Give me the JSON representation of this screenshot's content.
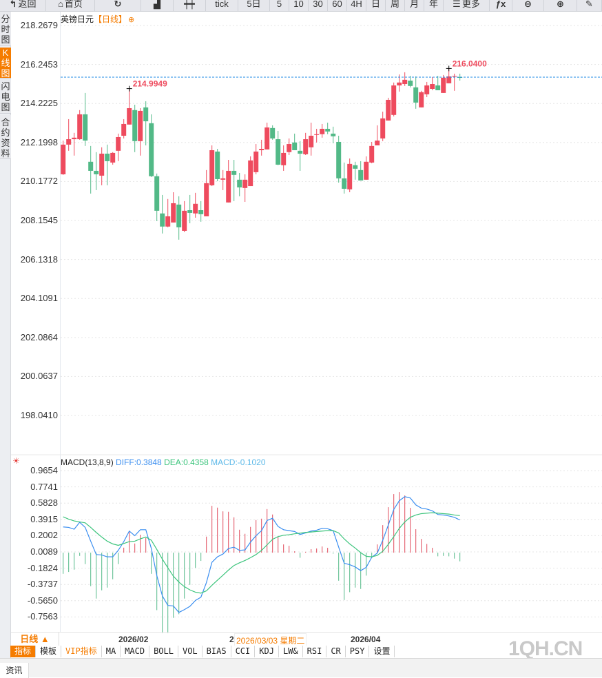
{
  "toolbar": {
    "buttons": [
      {
        "label": "返回",
        "icon": "back-arrow-icon"
      },
      {
        "label": "首页",
        "icon": "home-icon"
      },
      {
        "label": "",
        "icon": "refresh-icon"
      },
      {
        "label": "",
        "icon": "bar-chart-icon"
      },
      {
        "label": "",
        "icon": "candlestick-icon"
      },
      {
        "label": "tick"
      },
      {
        "label": "5日"
      },
      {
        "label": "5"
      },
      {
        "label": "10"
      },
      {
        "label": "30"
      },
      {
        "label": "60"
      },
      {
        "label": "4H"
      },
      {
        "label": "日"
      },
      {
        "label": "周"
      },
      {
        "label": "月"
      },
      {
        "label": "年"
      },
      {
        "label": "更多",
        "icon": "menu-icon"
      },
      {
        "label": "",
        "icon": "fx-icon"
      },
      {
        "label": "",
        "icon": "zoom-out-icon"
      },
      {
        "label": "",
        "icon": "zoom-in-icon"
      },
      {
        "label": "",
        "icon": "pen-icon"
      }
    ]
  },
  "sidebar": {
    "tabs": [
      {
        "label": "分时图"
      },
      {
        "label": "K线图",
        "active": true
      },
      {
        "label": "闪电图"
      },
      {
        "label": "合约资料"
      }
    ]
  },
  "chart": {
    "symbol": "英镑日元",
    "period": "【日线】",
    "last_price_line": 215.588
  },
  "chart_data": [
    {
      "type": "candlestick",
      "title": "英镑日元【日线】",
      "yticks": [
        "218.2679",
        "216.2453",
        "214.2225",
        "212.1998",
        "210.1772",
        "208.1545",
        "206.1318",
        "204.1091",
        "202.0864",
        "200.0637",
        "198.0410"
      ],
      "ylim": [
        196.6,
        218.9
      ],
      "annotations": [
        {
          "label": "214.9949",
          "candle": 13
        },
        {
          "label": "216.0400",
          "candle": 71
        }
      ],
      "colors": {
        "up": "#ee4b5e",
        "down": "#52b987",
        "last_line": "#1e88e5"
      },
      "ohlc": [
        [
          210.55,
          212.3,
          210.52,
          212.09
        ],
        [
          212.09,
          213.41,
          211.77,
          212.37
        ],
        [
          212.37,
          212.7,
          211.52,
          212.45
        ],
        [
          212.37,
          213.88,
          212.34,
          213.66
        ],
        [
          213.66,
          214.77,
          212.02,
          212.3
        ],
        [
          211.2,
          212.02,
          209.55,
          210.73
        ],
        [
          210.73,
          211.7,
          209.73,
          210.55
        ],
        [
          210.48,
          211.95,
          209.98,
          211.62
        ],
        [
          211.62,
          212.09,
          209.98,
          211.23
        ],
        [
          211.16,
          211.7,
          211.05,
          211.66
        ],
        [
          211.77,
          212.66,
          211.23,
          212.48
        ],
        [
          212.55,
          213.41,
          212.41,
          213.16
        ],
        [
          213.13,
          214.9949,
          213.13,
          213.98
        ],
        [
          213.88,
          214.16,
          211.7,
          212.27
        ],
        [
          212.27,
          213.98,
          211.52,
          213.84
        ],
        [
          214.02,
          214.34,
          212.05,
          213.3
        ],
        [
          213.2,
          213.66,
          210.41,
          210.45
        ],
        [
          210.45,
          210.59,
          208.12,
          208.66
        ],
        [
          208.52,
          209.48,
          207.48,
          207.84
        ],
        [
          207.84,
          209.27,
          207.8,
          208.37
        ],
        [
          208.05,
          209.62,
          208.05,
          209.05
        ],
        [
          208.98,
          209.41,
          207.16,
          207.8
        ],
        [
          207.62,
          209.16,
          207.55,
          208.66
        ],
        [
          208.69,
          209.48,
          208.01,
          208.55
        ],
        [
          208.52,
          209.59,
          208.3,
          209.02
        ],
        [
          208.69,
          209.16,
          208.09,
          208.48
        ],
        [
          208.37,
          210.77,
          208.37,
          210.09
        ],
        [
          209.98,
          212.05,
          209.94,
          211.8
        ],
        [
          211.73,
          211.87,
          210.19,
          210.3
        ],
        [
          210.27,
          210.77,
          209.73,
          210.34
        ],
        [
          209.09,
          211.3,
          209.09,
          210.73
        ],
        [
          210.73,
          211.3,
          209.16,
          210.52
        ],
        [
          210.27,
          210.62,
          209.41,
          209.87
        ],
        [
          209.84,
          210.55,
          209.12,
          210.27
        ],
        [
          209.94,
          211.48,
          209.94,
          211.27
        ],
        [
          210.66,
          212.12,
          210.55,
          211.73
        ],
        [
          211.8,
          212.34,
          211.52,
          211.87
        ],
        [
          211.84,
          213.23,
          211.84,
          212.98
        ],
        [
          212.95,
          213.09,
          212.34,
          212.41
        ],
        [
          212.37,
          212.8,
          211.02,
          211.05
        ],
        [
          211.02,
          212.05,
          210.73,
          211.66
        ],
        [
          211.7,
          212.41,
          211.55,
          212.12
        ],
        [
          212.2,
          212.66,
          211.8,
          211.8
        ],
        [
          211.77,
          212.27,
          210.73,
          211.62
        ],
        [
          211.59,
          212.7,
          211.55,
          212.37
        ],
        [
          211.95,
          213.23,
          211.52,
          212.55
        ],
        [
          212.59,
          212.91,
          212.2,
          212.63
        ],
        [
          212.63,
          213.16,
          212.45,
          212.91
        ],
        [
          212.91,
          213.23,
          212.63,
          212.77
        ],
        [
          212.66,
          213.02,
          212.16,
          212.52
        ],
        [
          212.23,
          212.55,
          210.12,
          210.34
        ],
        [
          210.34,
          211.16,
          209.55,
          209.8
        ],
        [
          209.77,
          211.37,
          209.62,
          211.09
        ],
        [
          211.02,
          211.2,
          210.27,
          210.84
        ],
        [
          210.77,
          211.23,
          210.23,
          210.23
        ],
        [
          210.27,
          211.48,
          210.27,
          211.2
        ],
        [
          211.16,
          212.23,
          211.12,
          212.02
        ],
        [
          212.05,
          213.09,
          212.05,
          212.3
        ],
        [
          212.41,
          213.8,
          212.27,
          213.45
        ],
        [
          213.34,
          214.52,
          213.34,
          214.41
        ],
        [
          213.63,
          215.31,
          213.55,
          215.16
        ],
        [
          215.16,
          215.73,
          214.84,
          215.31
        ],
        [
          215.23,
          215.84,
          215.13,
          215.45
        ],
        [
          215.41,
          215.66,
          215.06,
          215.13
        ],
        [
          215.06,
          215.63,
          213.95,
          214.27
        ],
        [
          214.02,
          214.88,
          214.02,
          214.81
        ],
        [
          214.7,
          215.34,
          214.55,
          215.16
        ],
        [
          214.98,
          215.59,
          214.91,
          215.23
        ],
        [
          215.16,
          215.66,
          214.91,
          214.91
        ],
        [
          214.77,
          215.7,
          214.77,
          215.56
        ],
        [
          215.27,
          216.04,
          215.27,
          215.63
        ],
        [
          215.63,
          215.77,
          214.88,
          215.66
        ],
        [
          215.59,
          215.77,
          215.41,
          215.58
        ]
      ]
    },
    {
      "type": "macd",
      "title": "MACD(13,8,9)",
      "yticks": [
        "0.9654",
        "0.7741",
        "0.5828",
        "0.3915",
        "0.2002",
        "0.0089",
        "-0.1824",
        "-0.3737",
        "-0.5650",
        "-0.7563"
      ],
      "colors": {
        "diff": "#3a8ef0",
        "dea": "#3cc47c",
        "up": "#e04a5a",
        "down": "#52b987"
      },
      "diff": [
        0.303,
        0.297,
        0.276,
        0.357,
        0.297,
        0.135,
        -0.022,
        -0.027,
        -0.049,
        -0.049,
        0.027,
        0.13,
        0.254,
        0.2,
        0.27,
        0.27,
        0.049,
        -0.27,
        -0.508,
        -0.621,
        -0.627,
        -0.703,
        -0.67,
        -0.632,
        -0.562,
        -0.524,
        -0.351,
        -0.113,
        -0.049,
        -0.016,
        0.049,
        0.065,
        0.027,
        0.032,
        0.124,
        0.2,
        0.259,
        0.378,
        0.405,
        0.308,
        0.27,
        0.259,
        0.249,
        0.214,
        0.232,
        0.254,
        0.265,
        0.286,
        0.281,
        0.259,
        0.065,
        -0.124,
        -0.141,
        -0.168,
        -0.211,
        -0.173,
        -0.054,
        -0.005,
        0.146,
        0.324,
        0.508,
        0.611,
        0.659,
        0.643,
        0.562,
        0.524,
        0.513,
        0.492,
        0.449,
        0.443,
        0.432,
        0.416,
        0.3848
      ],
      "dea": [
        0.422,
        0.394,
        0.373,
        0.362,
        0.351,
        0.297,
        0.238,
        0.184,
        0.135,
        0.103,
        0.086,
        0.108,
        0.13,
        0.135,
        0.162,
        0.184,
        0.146,
        0.038,
        -0.076,
        -0.178,
        -0.276,
        -0.346,
        -0.4,
        -0.438,
        -0.465,
        -0.476,
        -0.449,
        -0.384,
        -0.324,
        -0.265,
        -0.205,
        -0.151,
        -0.119,
        -0.092,
        -0.059,
        -0.022,
        0.027,
        0.092,
        0.157,
        0.189,
        0.205,
        0.211,
        0.222,
        0.23,
        0.238,
        0.243,
        0.249,
        0.254,
        0.259,
        0.259,
        0.232,
        0.162,
        0.103,
        0.054,
        0.0,
        -0.043,
        -0.049,
        -0.032,
        0.016,
        0.097,
        0.189,
        0.286,
        0.362,
        0.416,
        0.443,
        0.459,
        0.465,
        0.47,
        0.465,
        0.459,
        0.454,
        0.443,
        0.4358
      ],
      "macd": [
        -0.249,
        -0.227,
        -0.2,
        -0.038,
        -0.135,
        -0.394,
        -0.54,
        -0.443,
        -0.411,
        -0.313,
        -0.135,
        0.059,
        0.254,
        0.108,
        0.211,
        0.173,
        -0.249,
        -0.676,
        -0.946,
        -0.946,
        -0.767,
        -0.724,
        -0.54,
        -0.378,
        -0.178,
        -0.097,
        0.189,
        0.551,
        0.53,
        0.486,
        0.481,
        0.416,
        0.27,
        0.222,
        0.303,
        0.384,
        0.4,
        0.513,
        0.449,
        0.189,
        0.097,
        0.081,
        0.016,
        -0.06,
        0.01,
        0.041,
        0.049,
        0.073,
        0.057,
        -0.011,
        -0.33,
        -0.557,
        -0.465,
        -0.411,
        -0.427,
        -0.27,
        -0.065,
        0.097,
        0.324,
        0.535,
        0.689,
        0.713,
        0.673,
        0.527,
        0.276,
        0.162,
        0.103,
        0.057,
        -0.043,
        -0.038,
        -0.043,
        -0.07,
        -0.102
      ]
    }
  ],
  "macd_legend": {
    "name": "MACD(13,8,9)",
    "diff": "DIFF:0.3848",
    "dea": "DEA:0.4358",
    "macd": "MACD:-0.1020",
    "icon": "settings-sun-icon"
  },
  "date_axis": {
    "period_button": "日线 ▲",
    "labels": [
      "2026/02",
      "2",
      "2026/04"
    ],
    "crosshair_date": "2026/03/03 星期二"
  },
  "indicator_tabs": [
    {
      "label": "指标",
      "active": true
    },
    {
      "label": "模板"
    },
    {
      "label": "VIP指标",
      "vip": true
    },
    {
      "label": "MA"
    },
    {
      "label": "MACD"
    },
    {
      "label": "BOLL"
    },
    {
      "label": "VOL"
    },
    {
      "label": "BIAS"
    },
    {
      "label": "CCI"
    },
    {
      "label": "KDJ"
    },
    {
      "label": "LW&"
    },
    {
      "label": "RSI"
    },
    {
      "label": "CR"
    },
    {
      "label": "PSY"
    },
    {
      "label": "设置"
    }
  ],
  "watermark": "1QH.CN",
  "bottom": {
    "news_tab": "资讯"
  }
}
